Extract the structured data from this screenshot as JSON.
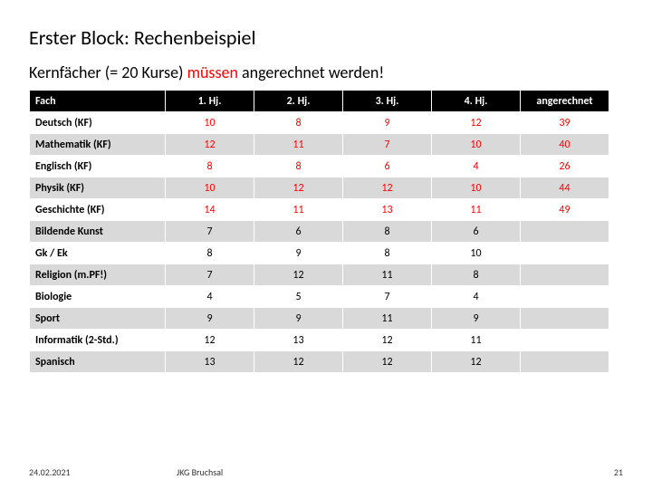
{
  "title": "Erster Block: Rechenbeispiel",
  "subtitle_parts": {
    "p1": "Kernfächer (= 20 Kurse) ",
    "p2": "müssen ",
    "p3": "angerechnet werden!"
  },
  "colors": {
    "highlight": "#ff0000",
    "kf_value": "#ff0000",
    "header_bg": "#000000",
    "header_fg": "#ffffff",
    "row_odd": "#ffffff",
    "row_even": "#d9d9d9"
  },
  "table": {
    "headers": [
      "Fach",
      "1. Hj.",
      "2. Hj.",
      "3. Hj.",
      "4. Hj.",
      "angerechnet"
    ],
    "rows": [
      {
        "fach": "Deutsch (KF)",
        "v": [
          "10",
          "8",
          "9",
          "12",
          "39"
        ],
        "kf": true
      },
      {
        "fach": "Mathematik (KF)",
        "v": [
          "12",
          "11",
          "7",
          "10",
          "40"
        ],
        "kf": true
      },
      {
        "fach": "Englisch (KF)",
        "v": [
          "8",
          "8",
          "6",
          "4",
          "26"
        ],
        "kf": true
      },
      {
        "fach": "Physik (KF)",
        "v": [
          "10",
          "12",
          "12",
          "10",
          "44"
        ],
        "kf": true
      },
      {
        "fach": "Geschichte (KF)",
        "v": [
          "14",
          "11",
          "13",
          "11",
          "49"
        ],
        "kf": true
      },
      {
        "fach": "Bildende Kunst",
        "v": [
          "7",
          "6",
          "8",
          "6",
          ""
        ],
        "kf": false
      },
      {
        "fach": "Gk / Ek",
        "v": [
          "8",
          "9",
          "8",
          "10",
          ""
        ],
        "kf": false
      },
      {
        "fach": "Religion (m.PF!)",
        "v": [
          "7",
          "12",
          "11",
          "8",
          ""
        ],
        "kf": false
      },
      {
        "fach": "Biologie",
        "v": [
          "4",
          "5",
          "7",
          "4",
          ""
        ],
        "kf": false
      },
      {
        "fach": "Sport",
        "v": [
          "9",
          "9",
          "11",
          "9",
          ""
        ],
        "kf": false
      },
      {
        "fach": "Informatik (2-Std.)",
        "v": [
          "12",
          "13",
          "12",
          "11",
          ""
        ],
        "kf": false
      },
      {
        "fach": "Spanisch",
        "v": [
          "13",
          "12",
          "12",
          "12",
          ""
        ],
        "kf": false
      }
    ]
  },
  "footer": {
    "date": "24.02.2021",
    "center": "JKG Bruchsal",
    "page": "21"
  }
}
